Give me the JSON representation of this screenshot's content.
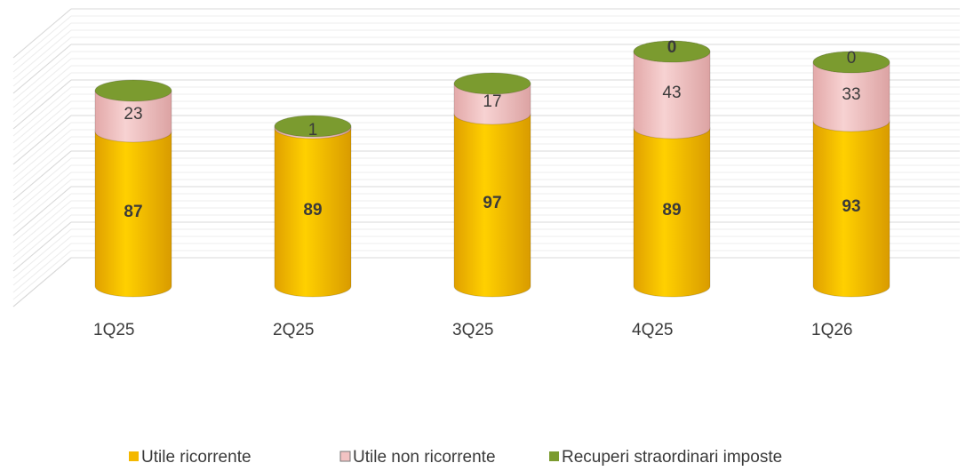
{
  "chart_data": {
    "type": "bar3d_stacked",
    "categories": [
      "1Q25",
      "2Q25",
      "3Q25",
      "4Q25",
      "1Q26"
    ],
    "series": [
      {
        "name": "Utile ricorrente",
        "color": "#f4b800",
        "values": [
          87,
          89,
          97,
          89,
          93
        ]
      },
      {
        "name": "Utile non ricorrente",
        "color": "#f2c3c3",
        "values": [
          23,
          1,
          17,
          43,
          33
        ]
      },
      {
        "name": "Recuperi straordinari imposte",
        "color": "#7b9b2f",
        "values": [
          null,
          null,
          null,
          0,
          0
        ]
      }
    ],
    "ylim": [
      0,
      160
    ],
    "grid": true,
    "legend": "bottom"
  }
}
